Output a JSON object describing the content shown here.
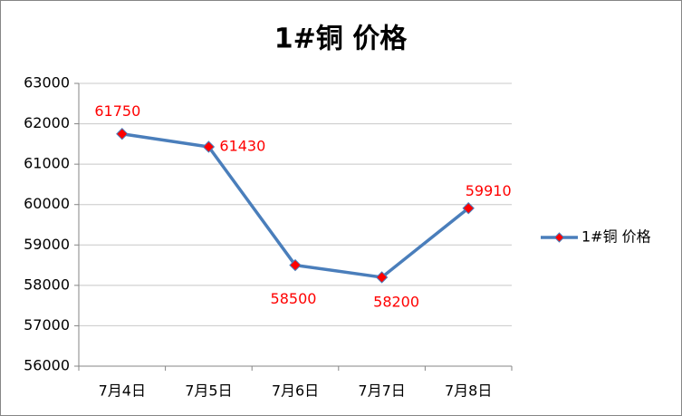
{
  "chart_data": {
    "type": "line",
    "title": "1#铜 价格",
    "categories": [
      "7月4日",
      "7月5日",
      "7月6日",
      "7月7日",
      "7月8日"
    ],
    "series": [
      {
        "name": "1#铜 价格",
        "color": "#4a7ebb",
        "marker_color": "#ff0000",
        "values": [
          61750,
          61430,
          58500,
          58200,
          59910
        ]
      }
    ],
    "ylim": [
      56000,
      63000
    ],
    "yticks": [
      56000,
      57000,
      58000,
      59000,
      60000,
      61000,
      62000,
      63000
    ],
    "grid": true,
    "legend": "right",
    "label_color": "#ff0000"
  }
}
